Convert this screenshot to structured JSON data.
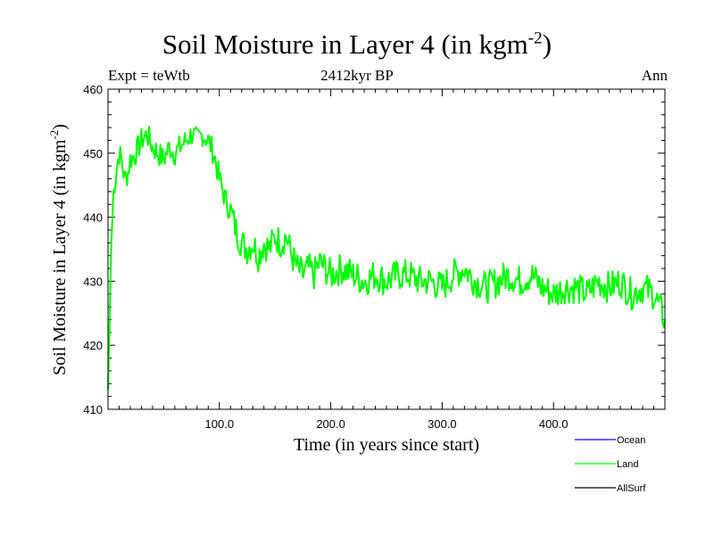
{
  "chart_data": {
    "type": "line",
    "title": "Soil Moisture in Layer 4 (in kgm",
    "title_sup": "-2",
    "title_end": ")",
    "subtitle": "2412kyr BP",
    "expt_label": "Expt = teWtb",
    "season_label": "Ann",
    "xlabel": "Time (in years since start)",
    "ylabel": "Soil Moisture in Layer 4 (in kgm",
    "ylabel_sup": "-2",
    "ylabel_end": ")",
    "xlim": [
      0,
      500
    ],
    "ylim": [
      410,
      460
    ],
    "x_ticks": [
      100,
      200,
      300,
      400
    ],
    "x_tick_labels": [
      "100.0",
      "200.0",
      "300.0",
      "400.0"
    ],
    "y_ticks": [
      410,
      420,
      430,
      440,
      450,
      460
    ],
    "y_tick_labels": [
      "410",
      "420",
      "430",
      "440",
      "450",
      "460"
    ],
    "legend": [
      {
        "name": "Ocean",
        "color": "#0000ff"
      },
      {
        "name": "Land",
        "color": "#00ff00"
      },
      {
        "name": "AllSurf",
        "color": "#000000"
      }
    ],
    "series": [
      {
        "name": "Land",
        "color": "#00ff00",
        "x": [
          0,
          1,
          2,
          3,
          5,
          8,
          10,
          12,
          15,
          18,
          20,
          25,
          30,
          35,
          40,
          45,
          50,
          55,
          60,
          65,
          70,
          75,
          80,
          85,
          90,
          95,
          100,
          105,
          110,
          115,
          120,
          125,
          130,
          135,
          140,
          145,
          150,
          155,
          160,
          165,
          170,
          175,
          180,
          185,
          190,
          195,
          200,
          210,
          220,
          230,
          240,
          250,
          260,
          270,
          280,
          290,
          300,
          310,
          320,
          330,
          340,
          350,
          360,
          370,
          380,
          390,
          400,
          410,
          420,
          430,
          440,
          450,
          460,
          470,
          480,
          490,
          495,
          500
        ],
        "values": [
          413,
          420,
          428,
          436,
          444,
          448,
          450,
          449,
          446,
          447,
          449,
          450,
          452,
          453,
          451,
          450,
          449,
          451,
          450,
          451,
          452,
          453,
          452,
          453,
          452,
          450,
          446,
          443,
          441,
          438,
          436,
          435,
          436,
          434,
          436,
          435,
          437,
          436,
          437,
          434,
          432,
          431,
          432,
          431,
          433,
          432,
          431,
          432,
          431,
          430,
          431,
          430,
          431,
          431,
          430,
          430,
          429,
          431,
          432,
          430,
          429,
          430,
          431,
          430,
          431,
          429,
          428,
          429,
          429,
          428,
          430,
          429,
          430,
          428,
          429,
          428,
          426,
          424
        ]
      }
    ]
  }
}
